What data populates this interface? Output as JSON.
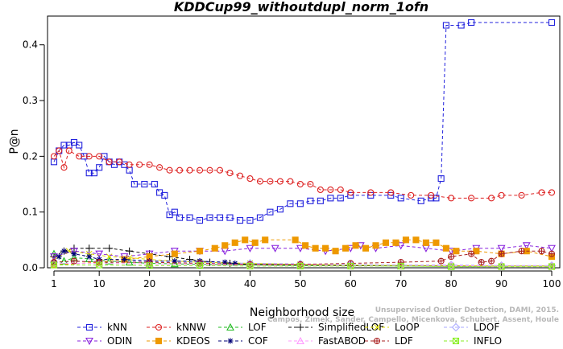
{
  "chart_data": {
    "type": "line",
    "title": "KDDCup99_withoutdupl_norm_1ofn",
    "xlabel": "Neighborhood size",
    "ylabel": "P@n",
    "xlim": [
      1,
      100
    ],
    "ylim": [
      0,
      0.44
    ],
    "xticks": [
      1,
      10,
      20,
      30,
      40,
      50,
      60,
      70,
      80,
      90,
      100
    ],
    "yticks": [
      0.0,
      0.1,
      0.2,
      0.3,
      0.4
    ],
    "grid": false,
    "legend_position": "bottom",
    "watermark": [
      "Unsupervised Outlier Detection, DAMI, 2015.",
      "Campos, Zimek, Sander, Campello, Micenkova, Schubert, Assent, Houle"
    ],
    "series": [
      {
        "name": "kNN",
        "color": "#2222dd",
        "marker": "square",
        "points": [
          [
            1,
            0.19
          ],
          [
            2,
            0.21
          ],
          [
            3,
            0.22
          ],
          [
            4,
            0.22
          ],
          [
            5,
            0.225
          ],
          [
            6,
            0.22
          ],
          [
            7,
            0.2
          ],
          [
            8,
            0.17
          ],
          [
            9,
            0.17
          ],
          [
            10,
            0.18
          ],
          [
            11,
            0.2
          ],
          [
            12,
            0.19
          ],
          [
            13,
            0.185
          ],
          [
            14,
            0.19
          ],
          [
            15,
            0.185
          ],
          [
            16,
            0.175
          ],
          [
            17,
            0.15
          ],
          [
            19,
            0.15
          ],
          [
            21,
            0.15
          ],
          [
            22,
            0.135
          ],
          [
            23,
            0.13
          ],
          [
            24,
            0.095
          ],
          [
            25,
            0.1
          ],
          [
            26,
            0.09
          ],
          [
            28,
            0.09
          ],
          [
            30,
            0.085
          ],
          [
            32,
            0.09
          ],
          [
            34,
            0.09
          ],
          [
            36,
            0.09
          ],
          [
            38,
            0.085
          ],
          [
            40,
            0.085
          ],
          [
            42,
            0.09
          ],
          [
            44,
            0.1
          ],
          [
            46,
            0.105
          ],
          [
            48,
            0.115
          ],
          [
            50,
            0.115
          ],
          [
            52,
            0.12
          ],
          [
            54,
            0.12
          ],
          [
            56,
            0.125
          ],
          [
            58,
            0.125
          ],
          [
            60,
            0.13
          ],
          [
            64,
            0.13
          ],
          [
            68,
            0.13
          ],
          [
            70,
            0.125
          ],
          [
            74,
            0.12
          ],
          [
            76,
            0.125
          ],
          [
            77,
            0.125
          ],
          [
            78,
            0.16
          ],
          [
            79,
            0.435
          ],
          [
            82,
            0.435
          ],
          [
            84,
            0.44
          ],
          [
            100,
            0.44
          ]
        ]
      },
      {
        "name": "kNNW",
        "color": "#dd2222",
        "marker": "circle",
        "points": [
          [
            1,
            0.2
          ],
          [
            2,
            0.21
          ],
          [
            3,
            0.18
          ],
          [
            4,
            0.21
          ],
          [
            6,
            0.2
          ],
          [
            8,
            0.2
          ],
          [
            10,
            0.2
          ],
          [
            12,
            0.19
          ],
          [
            14,
            0.19
          ],
          [
            16,
            0.185
          ],
          [
            18,
            0.185
          ],
          [
            20,
            0.185
          ],
          [
            22,
            0.18
          ],
          [
            24,
            0.175
          ],
          [
            26,
            0.175
          ],
          [
            28,
            0.175
          ],
          [
            30,
            0.175
          ],
          [
            32,
            0.175
          ],
          [
            34,
            0.175
          ],
          [
            36,
            0.17
          ],
          [
            38,
            0.165
          ],
          [
            40,
            0.16
          ],
          [
            42,
            0.155
          ],
          [
            44,
            0.155
          ],
          [
            46,
            0.155
          ],
          [
            48,
            0.155
          ],
          [
            50,
            0.15
          ],
          [
            52,
            0.15
          ],
          [
            54,
            0.14
          ],
          [
            56,
            0.14
          ],
          [
            58,
            0.14
          ],
          [
            60,
            0.135
          ],
          [
            64,
            0.135
          ],
          [
            68,
            0.135
          ],
          [
            72,
            0.13
          ],
          [
            76,
            0.13
          ],
          [
            80,
            0.125
          ],
          [
            84,
            0.125
          ],
          [
            88,
            0.125
          ],
          [
            90,
            0.13
          ],
          [
            94,
            0.13
          ],
          [
            98,
            0.135
          ],
          [
            100,
            0.135
          ]
        ]
      },
      {
        "name": "LOF",
        "color": "#22bb22",
        "marker": "triangle-up",
        "points": [
          [
            1,
            0.025
          ],
          [
            3,
            0.012
          ],
          [
            5,
            0.018
          ],
          [
            8,
            0.016
          ],
          [
            12,
            0.012
          ],
          [
            16,
            0.01
          ],
          [
            20,
            0.008
          ],
          [
            25,
            0.007
          ],
          [
            30,
            0.006
          ],
          [
            40,
            0.005
          ],
          [
            50,
            0.004
          ],
          [
            60,
            0.004
          ],
          [
            70,
            0.003
          ],
          [
            80,
            0.003
          ],
          [
            90,
            0.003
          ],
          [
            100,
            0.003
          ]
        ]
      },
      {
        "name": "SimplifiedLOF",
        "color": "#111111",
        "marker": "plus",
        "points": [
          [
            1,
            0.02
          ],
          [
            3,
            0.03
          ],
          [
            5,
            0.035
          ],
          [
            8,
            0.035
          ],
          [
            12,
            0.035
          ],
          [
            16,
            0.03
          ],
          [
            20,
            0.025
          ],
          [
            24,
            0.02
          ],
          [
            28,
            0.015
          ],
          [
            32,
            0.01
          ],
          [
            36,
            0.008
          ],
          [
            40,
            0.006
          ],
          [
            50,
            0.005
          ],
          [
            60,
            0.004
          ],
          [
            70,
            0.004
          ],
          [
            80,
            0.003
          ],
          [
            90,
            0.003
          ],
          [
            100,
            0.003
          ]
        ]
      },
      {
        "name": "LoOP",
        "color": "#dddd00",
        "marker": "cross",
        "points": [
          [
            1,
            0.015
          ],
          [
            4,
            0.03
          ],
          [
            8,
            0.025
          ],
          [
            12,
            0.02
          ],
          [
            16,
            0.018
          ],
          [
            20,
            0.015
          ],
          [
            25,
            0.012
          ],
          [
            30,
            0.01
          ],
          [
            40,
            0.008
          ],
          [
            50,
            0.006
          ],
          [
            60,
            0.005
          ],
          [
            70,
            0.004
          ],
          [
            80,
            0.004
          ],
          [
            90,
            0.003
          ],
          [
            100,
            0.003
          ]
        ]
      },
      {
        "name": "LDOF",
        "color": "#aaaaff",
        "marker": "diamond",
        "points": [
          [
            1,
            0.01
          ],
          [
            10,
            0.012
          ],
          [
            20,
            0.012
          ],
          [
            30,
            0.01
          ],
          [
            40,
            0.008
          ],
          [
            50,
            0.007
          ],
          [
            60,
            0.006
          ],
          [
            70,
            0.005
          ],
          [
            80,
            0.005
          ],
          [
            90,
            0.004
          ],
          [
            100,
            0.004
          ]
        ]
      },
      {
        "name": "ODIN",
        "color": "#8822dd",
        "marker": "triangle-down",
        "points": [
          [
            1,
            0.02
          ],
          [
            5,
            0.03
          ],
          [
            10,
            0.025
          ],
          [
            15,
            0.02
          ],
          [
            20,
            0.025
          ],
          [
            25,
            0.03
          ],
          [
            30,
            0.03
          ],
          [
            35,
            0.03
          ],
          [
            40,
            0.035
          ],
          [
            45,
            0.035
          ],
          [
            50,
            0.035
          ],
          [
            55,
            0.03
          ],
          [
            60,
            0.035
          ],
          [
            62,
            0.04
          ],
          [
            65,
            0.035
          ],
          [
            70,
            0.04
          ],
          [
            75,
            0.035
          ],
          [
            80,
            0.03
          ],
          [
            85,
            0.035
          ],
          [
            90,
            0.035
          ],
          [
            95,
            0.04
          ],
          [
            100,
            0.035
          ]
        ]
      },
      {
        "name": "KDEOS",
        "color": "#ee9900",
        "marker": "square-filled",
        "points": [
          [
            1,
            0.005
          ],
          [
            10,
            0.01
          ],
          [
            15,
            0.015
          ],
          [
            20,
            0.02
          ],
          [
            25,
            0.025
          ],
          [
            30,
            0.03
          ],
          [
            33,
            0.035
          ],
          [
            35,
            0.04
          ],
          [
            37,
            0.045
          ],
          [
            39,
            0.05
          ],
          [
            41,
            0.045
          ],
          [
            43,
            0.05
          ],
          [
            49,
            0.05
          ],
          [
            51,
            0.04
          ],
          [
            53,
            0.035
          ],
          [
            55,
            0.035
          ],
          [
            57,
            0.03
          ],
          [
            59,
            0.035
          ],
          [
            61,
            0.04
          ],
          [
            63,
            0.035
          ],
          [
            65,
            0.04
          ],
          [
            67,
            0.045
          ],
          [
            69,
            0.045
          ],
          [
            71,
            0.05
          ],
          [
            73,
            0.05
          ],
          [
            75,
            0.045
          ],
          [
            77,
            0.045
          ],
          [
            79,
            0.035
          ],
          [
            81,
            0.03
          ],
          [
            85,
            0.03
          ],
          [
            90,
            0.025
          ],
          [
            95,
            0.03
          ],
          [
            100,
            0.02
          ]
        ]
      },
      {
        "name": "COF",
        "color": "#000077",
        "marker": "asterisk",
        "points": [
          [
            1,
            0.01
          ],
          [
            2,
            0.02
          ],
          [
            3,
            0.03
          ],
          [
            5,
            0.025
          ],
          [
            8,
            0.02
          ],
          [
            10,
            0.015
          ],
          [
            15,
            0.015
          ],
          [
            20,
            0.012
          ],
          [
            25,
            0.012
          ],
          [
            30,
            0.012
          ],
          [
            35,
            0.01
          ],
          [
            37,
            0.008
          ]
        ]
      },
      {
        "name": "FastABOD",
        "color": "#ff99ff",
        "marker": "triangle-up-open",
        "points": [
          [
            1,
            0.008
          ],
          [
            10,
            0.008
          ],
          [
            20,
            0.007
          ],
          [
            30,
            0.006
          ],
          [
            40,
            0.005
          ],
          [
            50,
            0.005
          ],
          [
            60,
            0.004
          ],
          [
            70,
            0.004
          ],
          [
            80,
            0.004
          ],
          [
            90,
            0.003
          ],
          [
            100,
            0.003
          ]
        ]
      },
      {
        "name": "LDF",
        "color": "#aa2222",
        "marker": "circle-plus",
        "points": [
          [
            1,
            0.01
          ],
          [
            5,
            0.012
          ],
          [
            10,
            0.01
          ],
          [
            20,
            0.01
          ],
          [
            30,
            0.008
          ],
          [
            40,
            0.006
          ],
          [
            50,
            0.006
          ],
          [
            60,
            0.008
          ],
          [
            70,
            0.01
          ],
          [
            78,
            0.012
          ],
          [
            80,
            0.02
          ],
          [
            84,
            0.025
          ],
          [
            86,
            0.01
          ],
          [
            88,
            0.012
          ],
          [
            90,
            0.025
          ],
          [
            94,
            0.03
          ],
          [
            98,
            0.03
          ],
          [
            100,
            0.025
          ]
        ]
      },
      {
        "name": "INFLO",
        "color": "#88ee22",
        "marker": "square-x",
        "points": [
          [
            1,
            0.005
          ],
          [
            10,
            0.005
          ],
          [
            20,
            0.004
          ],
          [
            30,
            0.004
          ],
          [
            40,
            0.003
          ],
          [
            50,
            0.003
          ],
          [
            60,
            0.003
          ],
          [
            70,
            0.003
          ],
          [
            80,
            0.002
          ],
          [
            90,
            0.002
          ],
          [
            100,
            0.002
          ]
        ]
      }
    ]
  }
}
